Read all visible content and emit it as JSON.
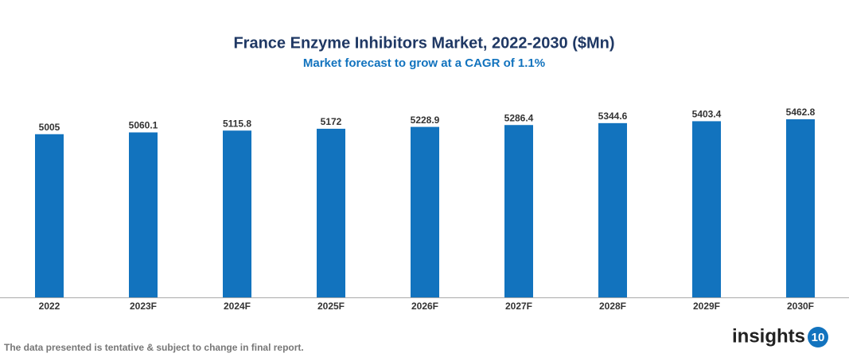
{
  "chart_data": {
    "type": "bar",
    "title": "France Enzyme Inhibitors Market, 2022-2030 ($Mn)",
    "subtitle": "Market forecast to grow at a CAGR of 1.1%",
    "categories": [
      "2022",
      "2023F",
      "2024F",
      "2025F",
      "2026F",
      "2027F",
      "2028F",
      "2029F",
      "2030F"
    ],
    "values": [
      5005,
      5060.1,
      5115.8,
      5172,
      5228.9,
      5286.4,
      5344.6,
      5403.4,
      5462.8
    ],
    "color": "#1273be"
  },
  "footer": {
    "note": "The data presented is tentative & subject to change in final report.",
    "logo": {
      "text": "insights",
      "badge": "10"
    }
  }
}
